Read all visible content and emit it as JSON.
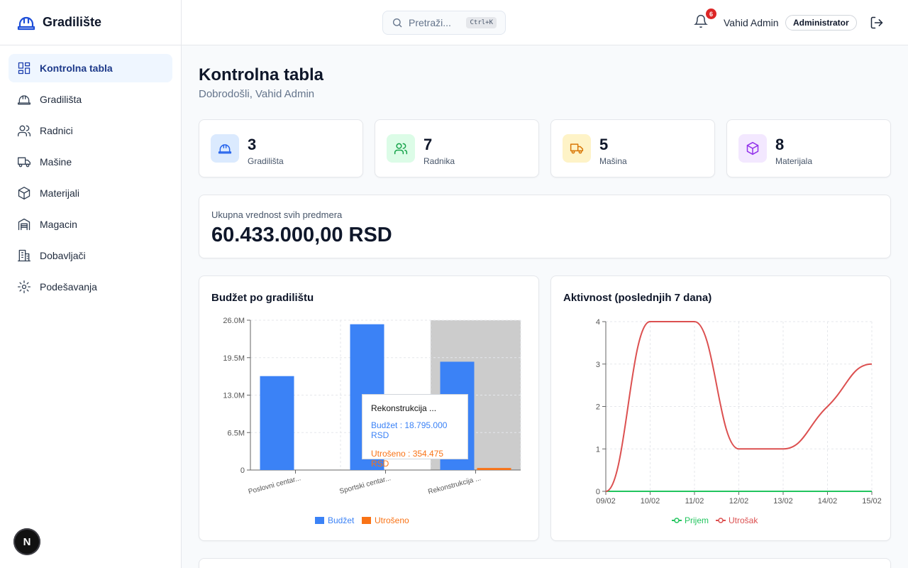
{
  "app": {
    "title": "Gradilište"
  },
  "sidebar": {
    "items": [
      {
        "label": "Kontrolna tabla",
        "icon": "dashboard-icon",
        "active": true
      },
      {
        "label": "Gradilišta",
        "icon": "hardhat-icon"
      },
      {
        "label": "Radnici",
        "icon": "users-icon"
      },
      {
        "label": "Mašine",
        "icon": "truck-icon"
      },
      {
        "label": "Materijali",
        "icon": "package-icon"
      },
      {
        "label": "Magacin",
        "icon": "warehouse-icon"
      },
      {
        "label": "Dobavljači",
        "icon": "building-icon"
      },
      {
        "label": "Podešavanja",
        "icon": "gear-icon"
      }
    ],
    "badge": "N"
  },
  "header": {
    "search_placeholder": "Pretraži...",
    "shortcut": "Ctrl+K",
    "notifications": "6",
    "user_name": "Vahid Admin",
    "role": "Administrator"
  },
  "page": {
    "title": "Kontrolna tabla",
    "subtitle": "Dobrodošli, Vahid Admin"
  },
  "stats": [
    {
      "value": "3",
      "label": "Gradilišta",
      "icon": "hardhat-icon",
      "color": "#2563eb",
      "bg": "#dbeafe"
    },
    {
      "value": "7",
      "label": "Radnika",
      "icon": "users-icon",
      "color": "#16a34a",
      "bg": "#dcfce7"
    },
    {
      "value": "5",
      "label": "Mašina",
      "icon": "truck-icon",
      "color": "#d97706",
      "bg": "#fef3c7"
    },
    {
      "value": "8",
      "label": "Materijala",
      "icon": "package-icon",
      "color": "#9333ea",
      "bg": "#f3e8ff"
    }
  ],
  "total": {
    "label": "Ukupna vrednost svih predmera",
    "value": "60.433.000,00 RSD"
  },
  "tooltip": {
    "title": "Rekonstrukcija ...",
    "budget": "Budžet : 18.795.000 RSD",
    "spent": "Utrošeno : 354.475 RSD"
  },
  "chart_data": [
    {
      "type": "bar",
      "title": "Budžet po gradilištu",
      "categories": [
        "Poslovni centar...",
        "Sportski centar...",
        "Rekonstrukcija ..."
      ],
      "series": [
        {
          "name": "Budžet",
          "values": [
            16300000,
            25300000,
            18795000
          ],
          "color": "#3b82f6"
        },
        {
          "name": "Utrošeno",
          "values": [
            0,
            0,
            354475
          ],
          "color": "#f97316"
        }
      ],
      "yticks": [
        "0",
        "6.5M",
        "13.0M",
        "19.5M",
        "26.0M"
      ],
      "ylim": [
        0,
        26000000
      ],
      "highlight_index": 2
    },
    {
      "type": "line",
      "title": "Aktivnost (poslednjih 7 dana)",
      "x": [
        "09/02",
        "10/02",
        "11/02",
        "12/02",
        "13/02",
        "14/02",
        "15/02"
      ],
      "series": [
        {
          "name": "Prijem",
          "values": [
            0,
            0,
            0,
            0,
            0,
            0,
            0
          ],
          "color": "#22c55e"
        },
        {
          "name": "Utrošak",
          "values": [
            0,
            4,
            4,
            1,
            1,
            2,
            3
          ],
          "color": "#dc5050"
        }
      ],
      "yticks": [
        "0",
        "1",
        "2",
        "3",
        "4"
      ],
      "ylim": [
        0,
        4
      ]
    }
  ]
}
